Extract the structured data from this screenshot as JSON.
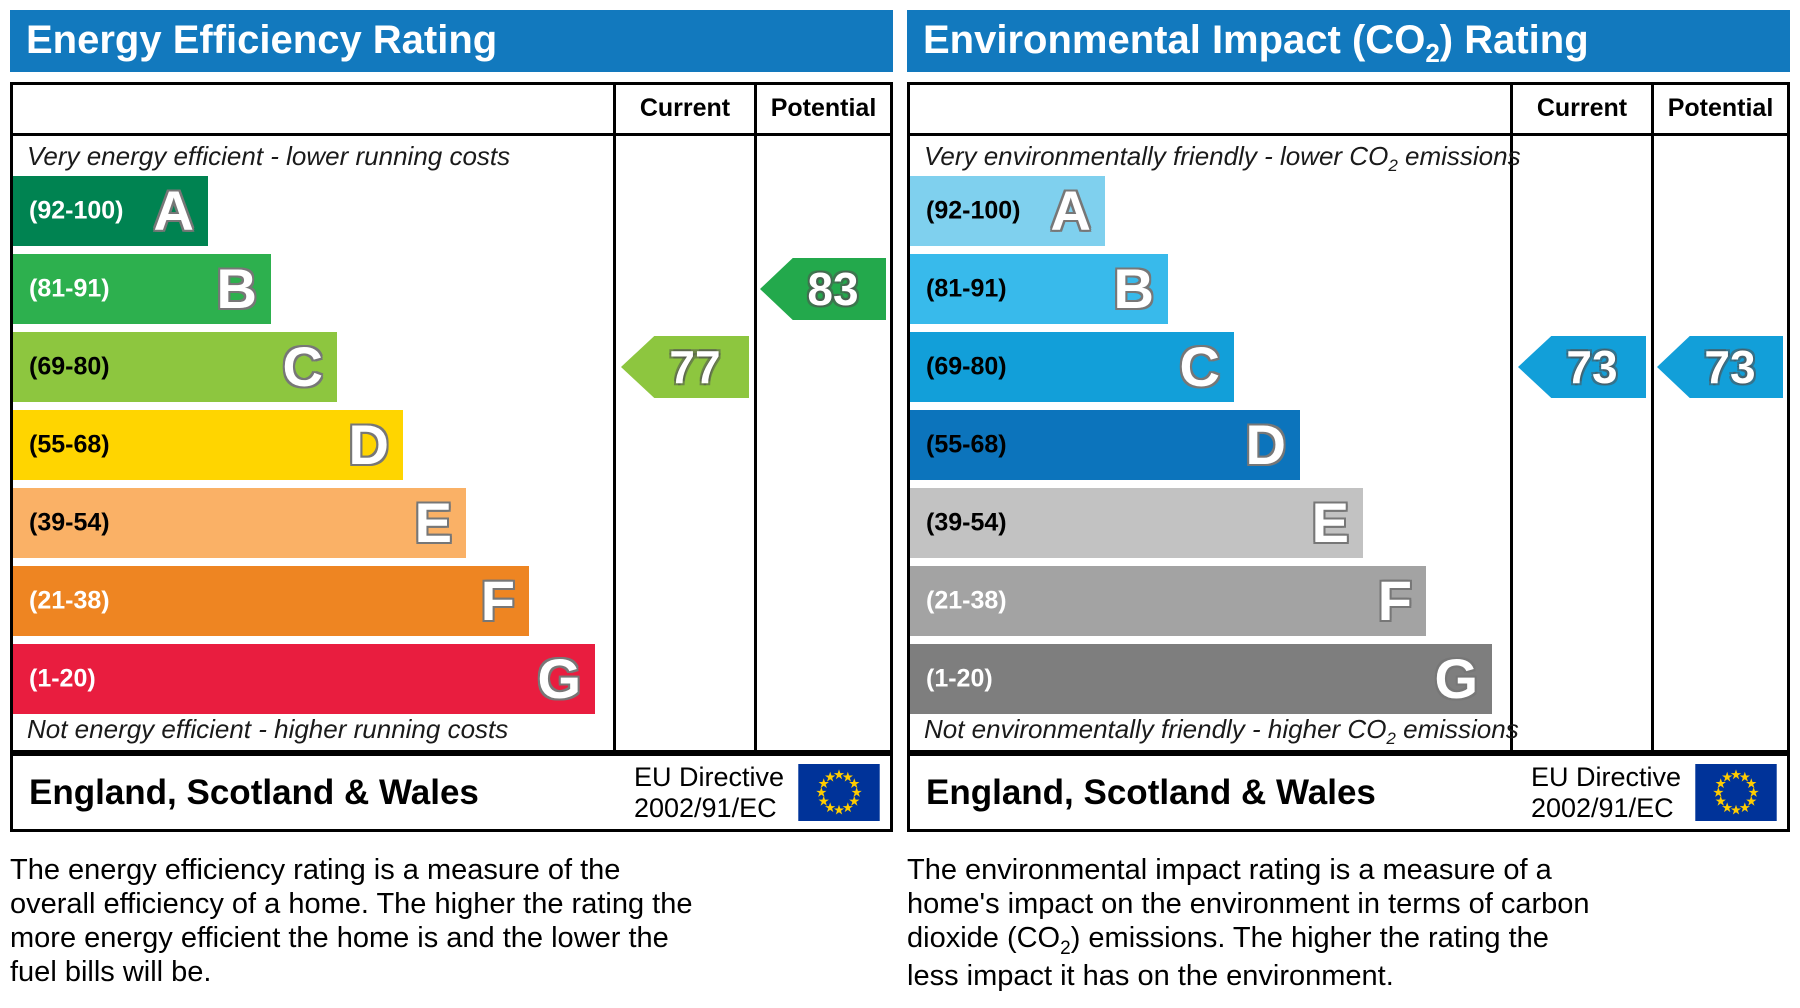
{
  "colors": {
    "header_bg": "#1279be",
    "eu_flag_bg": "#003399",
    "eu_star": "#ffcc00"
  },
  "chart_data": [
    {
      "type": "bar",
      "variant": "epc-rating-scale",
      "title": "Energy Efficiency Rating",
      "column_headers": [
        "Current",
        "Potential"
      ],
      "top_note": "Very energy efficient - lower running costs",
      "bottom_note": "Not energy efficient - higher running costs",
      "bands": [
        {
          "grade": "A",
          "range": "92-100",
          "color": "#008351"
        },
        {
          "grade": "B",
          "range": "81-91",
          "color": "#2db04e"
        },
        {
          "grade": "C",
          "range": "69-80",
          "color": "#8dc63f"
        },
        {
          "grade": "D",
          "range": "55-68",
          "color": "#ffd500"
        },
        {
          "grade": "E",
          "range": "39-54",
          "color": "#fab166"
        },
        {
          "grade": "F",
          "range": "21-38",
          "color": "#ee8522"
        },
        {
          "grade": "G",
          "range": "1-20",
          "color": "#e91d3f"
        }
      ],
      "current": 77,
      "current_grade": "C",
      "potential": 83,
      "potential_grade": "B",
      "region": "England, Scotland & Wales",
      "directive": "EU Directive 2002/91/EC"
    },
    {
      "type": "bar",
      "variant": "epc-rating-scale",
      "title": "Environmental Impact (CO2) Rating",
      "column_headers": [
        "Current",
        "Potential"
      ],
      "top_note": "Very environmentally friendly - lower CO2 emissions",
      "bottom_note": "Not environmentally friendly - higher CO2 emissions",
      "bands": [
        {
          "grade": "A",
          "range": "92-100",
          "color": "#7fd0ee"
        },
        {
          "grade": "B",
          "range": "81-91",
          "color": "#38baeb"
        },
        {
          "grade": "C",
          "range": "69-80",
          "color": "#129fd9"
        },
        {
          "grade": "D",
          "range": "55-68",
          "color": "#0c74bc"
        },
        {
          "grade": "E",
          "range": "39-54",
          "color": "#c2c2c2"
        },
        {
          "grade": "F",
          "range": "21-38",
          "color": "#a3a3a3"
        },
        {
          "grade": "G",
          "range": "1-20",
          "color": "#7e7e7e"
        }
      ],
      "current": 73,
      "current_grade": "C",
      "potential": 73,
      "potential_grade": "C",
      "region": "England, Scotland & Wales",
      "directive": "EU Directive 2002/91/EC"
    }
  ],
  "panels": [
    {
      "title": {
        "pre": "Energy Efficiency Rating",
        "sub": "",
        "post": ""
      },
      "columns": {
        "current": "Current",
        "potential": "Potential"
      },
      "top_note": {
        "pre": "Very energy efficient - lower running costs",
        "sub": "",
        "post": ""
      },
      "bottom_note": {
        "pre": "Not energy efficient - higher running costs",
        "sub": "",
        "post": ""
      },
      "bands": [
        {
          "letter": "A",
          "range": "(92-100)",
          "color": "#008351",
          "width_pct": 32.5,
          "range_color": "#ffffff"
        },
        {
          "letter": "B",
          "range": "(81-91)",
          "color": "#2db04e",
          "width_pct": 43,
          "range_color": "#ffffff"
        },
        {
          "letter": "C",
          "range": "(69-80)",
          "color": "#8dc63f",
          "width_pct": 54,
          "range_color": "#000000"
        },
        {
          "letter": "D",
          "range": "(55-68)",
          "color": "#ffd500",
          "width_pct": 65,
          "range_color": "#000000"
        },
        {
          "letter": "E",
          "range": "(39-54)",
          "color": "#fab166",
          "width_pct": 75.5,
          "range_color": "#000000"
        },
        {
          "letter": "F",
          "range": "(21-38)",
          "color": "#ee8522",
          "width_pct": 86,
          "range_color": "#ffffff"
        },
        {
          "letter": "G",
          "range": "(1-20)",
          "color": "#e91d3f",
          "width_pct": 97,
          "range_color": "#ffffff"
        }
      ],
      "arrows": {
        "current": {
          "value": "77",
          "color": "#8dc63f",
          "row": 2
        },
        "potential": {
          "value": "83",
          "color": "#23a94c",
          "row": 1
        }
      },
      "footer": {
        "region": "England, Scotland & Wales",
        "directive_line1": "EU Directive",
        "directive_line2": "2002/91/EC"
      },
      "description": {
        "pre": "The energy efficiency rating is a measure of the overall efficiency of a home. The higher the rating the more energy efficient the home is and the lower the fuel bills will be.",
        "sub": "",
        "post": ""
      }
    },
    {
      "title": {
        "pre": "Environmental Impact (CO",
        "sub": "2",
        "post": ") Rating"
      },
      "columns": {
        "current": "Current",
        "potential": "Potential"
      },
      "top_note": {
        "pre": "Very environmentally friendly - lower CO",
        "sub": "2",
        "post": " emissions"
      },
      "bottom_note": {
        "pre": "Not environmentally friendly - higher CO",
        "sub": "2",
        "post": " emissions"
      },
      "bands": [
        {
          "letter": "A",
          "range": "(92-100)",
          "color": "#7fd0ee",
          "width_pct": 32.5,
          "range_color": "#000000"
        },
        {
          "letter": "B",
          "range": "(81-91)",
          "color": "#38baeb",
          "width_pct": 43,
          "range_color": "#000000"
        },
        {
          "letter": "C",
          "range": "(69-80)",
          "color": "#129fd9",
          "width_pct": 54,
          "range_color": "#000000"
        },
        {
          "letter": "D",
          "range": "(55-68)",
          "color": "#0c74bc",
          "width_pct": 65,
          "range_color": "#000000"
        },
        {
          "letter": "E",
          "range": "(39-54)",
          "color": "#c2c2c2",
          "width_pct": 75.5,
          "range_color": "#000000"
        },
        {
          "letter": "F",
          "range": "(21-38)",
          "color": "#a3a3a3",
          "width_pct": 86,
          "range_color": "#ffffff"
        },
        {
          "letter": "G",
          "range": "(1-20)",
          "color": "#7e7e7e",
          "width_pct": 97,
          "range_color": "#ffffff"
        }
      ],
      "arrows": {
        "current": {
          "value": "73",
          "color": "#129fd9",
          "row": 2
        },
        "potential": {
          "value": "73",
          "color": "#129fd9",
          "row": 2
        }
      },
      "footer": {
        "region": "England, Scotland & Wales",
        "directive_line1": "EU Directive",
        "directive_line2": "2002/91/EC"
      },
      "description": {
        "pre": "The environmental impact rating is a measure of a home's impact on the environment in terms of carbon dioxide (CO",
        "sub": "2",
        "post": ") emissions. The higher the rating the less impact it has on the environment."
      }
    }
  ]
}
